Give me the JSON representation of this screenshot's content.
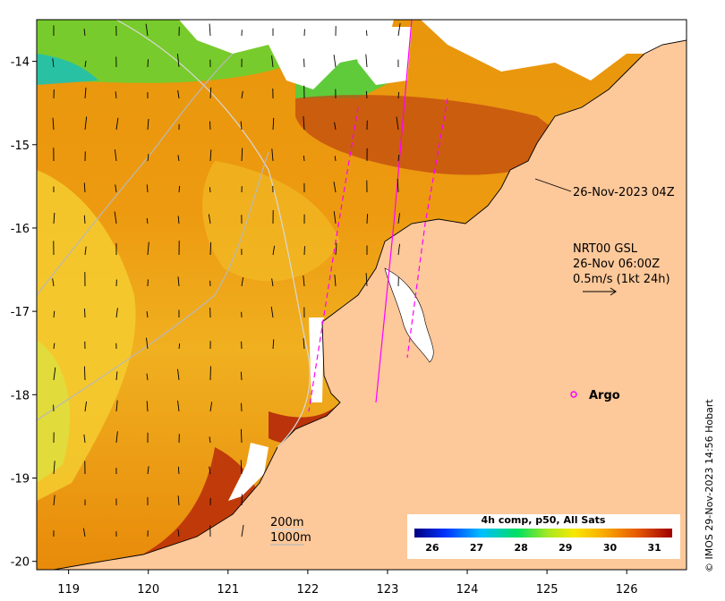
{
  "map": {
    "axes": {
      "x_ticks": [
        "119",
        "120",
        "121",
        "122",
        "123",
        "124",
        "125",
        "126"
      ],
      "x_values": [
        119,
        120,
        121,
        122,
        123,
        124,
        125,
        126
      ],
      "y_ticks": [
        "-14",
        "-15",
        "-16",
        "-17",
        "-18",
        "-19",
        "-20"
      ],
      "y_values": [
        -14,
        -15,
        -16,
        -17,
        -18,
        -19,
        -20
      ],
      "xlim": [
        118.6,
        126.75
      ],
      "ylim": [
        -20.1,
        -13.5
      ]
    },
    "annotations": {
      "satellite_time": "26-Nov-2023 04Z",
      "current_model": "NRT00 GSL",
      "current_time": "26-Nov 06:00Z",
      "current_scale": "0.5m/s (1kt 24h)",
      "argo_label": "Argo",
      "isobath_200": "200m",
      "isobath_1000": "1000m",
      "credit": "© IMOS 29-Nov-2023 14:56 Hobart"
    },
    "colorbar": {
      "title": "4h comp, p50, All Sats",
      "ticks": [
        "26",
        "27",
        "28",
        "29",
        "30",
        "31"
      ],
      "tick_values": [
        26,
        27,
        28,
        29,
        30,
        31
      ],
      "range": [
        25.6,
        31.4
      ]
    },
    "colors": {
      "land": "#fdc89a",
      "no_data": "#ffffff",
      "argo": "#ff00ff",
      "track": "#ff00ff",
      "isobath_200": "#d8d8d8",
      "isobath_1000": "#b8b8b8"
    }
  }
}
